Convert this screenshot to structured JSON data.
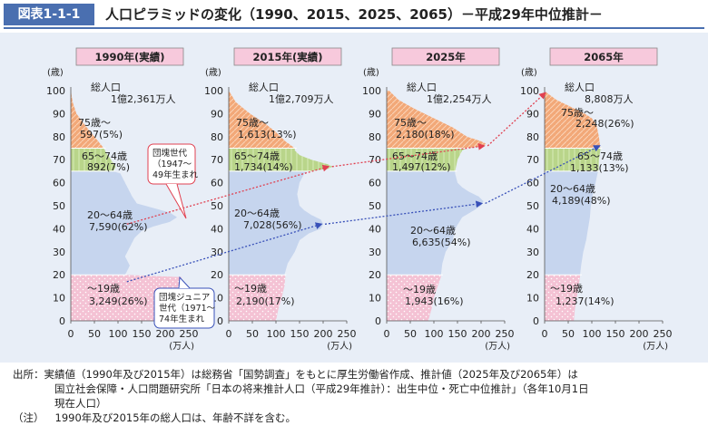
{
  "header": {
    "figure_label": "図表1-1-1",
    "title": "人口ピラミッドの変化（1990、2015、2025、2065）－平成29年中位推計－"
  },
  "chart_data": {
    "type": "bar",
    "panels": [
      {
        "title": "1990年(実績)",
        "total_label": "総人口",
        "total_value": "1億2,361万人",
        "groups": [
          {
            "label": "75歳～",
            "value": "597(5%)"
          },
          {
            "label": "65～74歳",
            "value": "892(7%)"
          },
          {
            "label": "20～64歳",
            "value": "7,590(62%)"
          },
          {
            "label": "～19歳",
            "value": "3,249(26%)"
          }
        ],
        "profile": [
          [
            0,
            190
          ],
          [
            5,
            205
          ],
          [
            10,
            215
          ],
          [
            15,
            230
          ],
          [
            19,
            235
          ],
          [
            20,
            115
          ],
          [
            24,
            125
          ],
          [
            28,
            115
          ],
          [
            32,
            125
          ],
          [
            36,
            135
          ],
          [
            39,
            150
          ],
          [
            41,
            175
          ],
          [
            43,
            210
          ],
          [
            45,
            225
          ],
          [
            47,
            210
          ],
          [
            49,
            175
          ],
          [
            51,
            140
          ],
          [
            54,
            130
          ],
          [
            58,
            120
          ],
          [
            62,
            110
          ],
          [
            64,
            105
          ],
          [
            65,
            90
          ],
          [
            67,
            95
          ],
          [
            70,
            85
          ],
          [
            73,
            75
          ],
          [
            75,
            70
          ],
          [
            80,
            50
          ],
          [
            85,
            30
          ],
          [
            90,
            12
          ],
          [
            95,
            4
          ],
          [
            100,
            0
          ]
        ]
      },
      {
        "title": "2015年(実績)",
        "total_label": "総人口",
        "total_value": "1億2,709万人",
        "groups": [
          {
            "label": "75歳～",
            "value": "1,613(13%)"
          },
          {
            "label": "65～74歳",
            "value": "1,734(14%)"
          },
          {
            "label": "20～64歳",
            "value": "7,028(56%)"
          },
          {
            "label": "～19歳",
            "value": "2,190(17%)"
          }
        ],
        "profile": [
          [
            0,
            100
          ],
          [
            5,
            105
          ],
          [
            10,
            112
          ],
          [
            15,
            118
          ],
          [
            19,
            120
          ],
          [
            20,
            118
          ],
          [
            25,
            125
          ],
          [
            30,
            140
          ],
          [
            35,
            150
          ],
          [
            38,
            170
          ],
          [
            40,
            195
          ],
          [
            42,
            200
          ],
          [
            44,
            195
          ],
          [
            46,
            175
          ],
          [
            48,
            160
          ],
          [
            50,
            150
          ],
          [
            55,
            145
          ],
          [
            60,
            150
          ],
          [
            64,
            160
          ],
          [
            65,
            170
          ],
          [
            66,
            210
          ],
          [
            67,
            220
          ],
          [
            68,
            210
          ],
          [
            70,
            175
          ],
          [
            72,
            150
          ],
          [
            74,
            140
          ],
          [
            75,
            140
          ],
          [
            78,
            120
          ],
          [
            82,
            100
          ],
          [
            86,
            75
          ],
          [
            90,
            45
          ],
          [
            95,
            15
          ],
          [
            100,
            0
          ]
        ]
      },
      {
        "title": "2025年",
        "total_label": "総人口",
        "total_value": "1億2,254万人",
        "groups": [
          {
            "label": "75歳～",
            "value": "2,180(18%)"
          },
          {
            "label": "65～74歳",
            "value": "1,497(12%)"
          },
          {
            "label": "20～64歳",
            "value": "6,635(54%)"
          },
          {
            "label": "～19歳",
            "value": "1,943(16%)"
          }
        ],
        "profile": [
          [
            0,
            88
          ],
          [
            5,
            95
          ],
          [
            10,
            100
          ],
          [
            15,
            108
          ],
          [
            19,
            115
          ],
          [
            20,
            115
          ],
          [
            25,
            118
          ],
          [
            30,
            125
          ],
          [
            35,
            140
          ],
          [
            40,
            145
          ],
          [
            45,
            160
          ],
          [
            48,
            185
          ],
          [
            50,
            200
          ],
          [
            52,
            205
          ],
          [
            54,
            195
          ],
          [
            56,
            175
          ],
          [
            58,
            160
          ],
          [
            60,
            150
          ],
          [
            64,
            145
          ],
          [
            65,
            145
          ],
          [
            70,
            150
          ],
          [
            74,
            160
          ],
          [
            75,
            170
          ],
          [
            76,
            205
          ],
          [
            77,
            210
          ],
          [
            78,
            200
          ],
          [
            80,
            170
          ],
          [
            84,
            140
          ],
          [
            88,
            100
          ],
          [
            92,
            60
          ],
          [
            96,
            25
          ],
          [
            100,
            5
          ]
        ]
      },
      {
        "title": "2065年",
        "total_label": "総人口",
        "total_value": "8,808万人",
        "groups": [
          {
            "label": "75歳～",
            "value": "2,248(26%)"
          },
          {
            "label": "65～74歳",
            "value": "1,133(13%)"
          },
          {
            "label": "20～64歳",
            "value": "4,189(48%)"
          },
          {
            "label": "～19歳",
            "value": "1,237(14%)"
          }
        ],
        "profile": [
          [
            0,
            62
          ],
          [
            5,
            64
          ],
          [
            10,
            68
          ],
          [
            15,
            72
          ],
          [
            19,
            75
          ],
          [
            20,
            75
          ],
          [
            25,
            78
          ],
          [
            30,
            82
          ],
          [
            35,
            88
          ],
          [
            40,
            92
          ],
          [
            45,
            96
          ],
          [
            50,
            98
          ],
          [
            55,
            102
          ],
          [
            60,
            108
          ],
          [
            64,
            112
          ],
          [
            65,
            114
          ],
          [
            70,
            115
          ],
          [
            74,
            118
          ],
          [
            75,
            118
          ],
          [
            80,
            115
          ],
          [
            85,
            110
          ],
          [
            88,
            100
          ],
          [
            90,
            85
          ],
          [
            93,
            55
          ],
          [
            96,
            25
          ],
          [
            99,
            5
          ]
        ]
      }
    ],
    "y_axis": {
      "label": "(歳)",
      "ticks": [
        "0",
        "10",
        "20",
        "30",
        "40",
        "50",
        "60",
        "70",
        "80",
        "90",
        "100"
      ],
      "range": [
        0,
        100
      ]
    },
    "x_axis": {
      "unit": "(万人)",
      "ticks": [
        "0",
        "50",
        "100",
        "150",
        "200",
        "250"
      ],
      "range": [
        0,
        250
      ]
    },
    "annotations": {
      "baby_boomer": "団塊世代（1947～49年生まれ）",
      "baby_boomer_junior": "団塊ジュニア世代（1971～74年生まれ）"
    },
    "colors": {
      "age_0_19": "#f4c2d4",
      "age_20_64": "#c6d5ee",
      "age_65_74": "#b9d58a",
      "age_75_plus": "#f2a878",
      "boomer_arrow": "#e04050",
      "junior_arrow": "#3850b8",
      "panel_title_bg": "#f7c9dc",
      "figure_label_bg": "#4a6fb0"
    }
  },
  "notes": {
    "source_label": "出所：",
    "source_line1": "実績値（1990年及び2015年）は総務省「国勢調査」をもとに厚生労働省作成、推計値（2025年及び2065年）は",
    "source_line2": "国立社会保障・人口問題研究所「日本の将来推計人口（平成29年推計）：出生中位・死亡中位推計」（各年10月1日",
    "source_line3": "現在人口）",
    "note_label": "（注）",
    "note_text": "1990年及び2015年の総人口は、年齢不詳を含む。"
  }
}
